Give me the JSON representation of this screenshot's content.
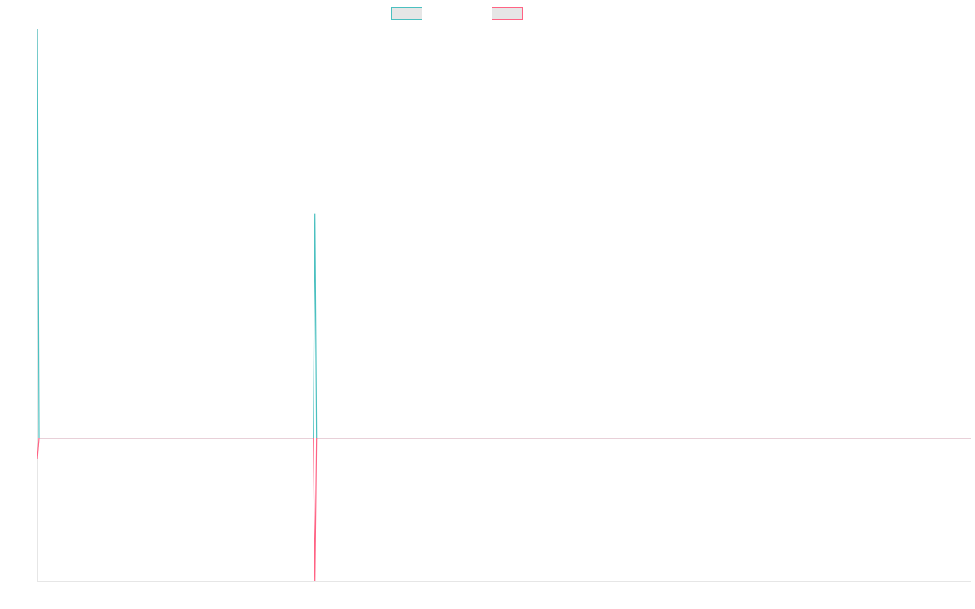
{
  "chart_data": {
    "type": "line",
    "title": "",
    "xlabel": "",
    "ylabel": "",
    "x_axis_labels_visible": false,
    "y_axis_labels_visible": false,
    "grid": false,
    "legend_placement": "top-center",
    "x": [
      0,
      1,
      170,
      171,
      172,
      575
    ],
    "ylim": [
      -0.35,
      1.0
    ],
    "series": [
      {
        "name": "",
        "color": "#4bc0c0",
        "values": [
          1.0,
          0.0,
          0.0,
          0.55,
          0.0,
          0.0
        ]
      },
      {
        "name": "",
        "color": "#ff6384",
        "values": [
          -0.05,
          0.0,
          0.0,
          -0.35,
          0.0,
          0.0
        ]
      }
    ]
  }
}
